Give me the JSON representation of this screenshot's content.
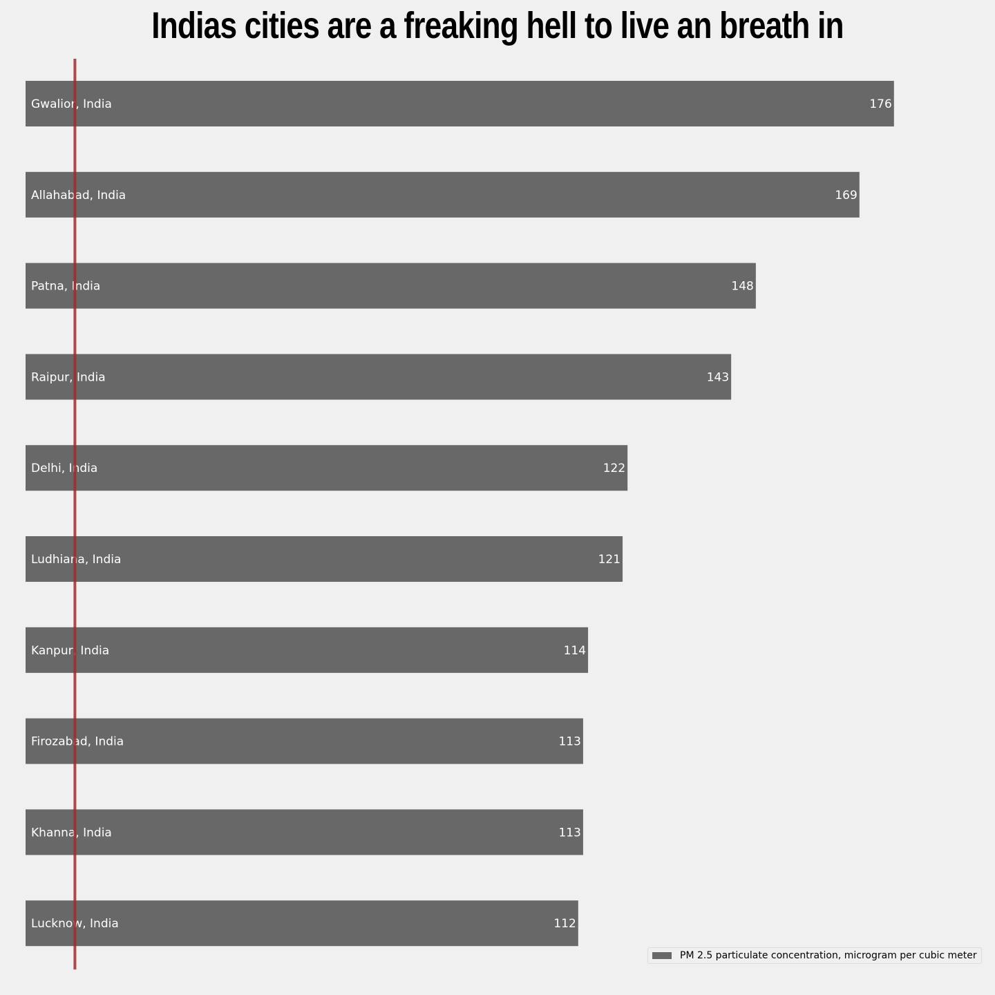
{
  "chart_data": {
    "type": "bar",
    "orientation": "horizontal",
    "title": "Indias cities are a freaking hell to live an breath in",
    "categories": [
      "Gwalior, India",
      "Allahabad, India",
      "Patna, India",
      "Raipur, India",
      "Delhi, India",
      "Ludhiana, India",
      "Kanpur, India",
      "Firozabad, India",
      "Khanna, India",
      "Lucknow, India"
    ],
    "series": [
      {
        "name": "PM 2.5 particulate concentration, microgram per cubic meter",
        "values": [
          176,
          169,
          148,
          143,
          122,
          121,
          114,
          113,
          113,
          112
        ]
      }
    ],
    "reference_line": {
      "x": 10,
      "color": "#a52a2a"
    },
    "xlim": [
      0,
      185
    ],
    "grid": false,
    "legend_position": "bottom-right",
    "bar_color": "#686868",
    "label_color": "#ffffff",
    "background_color": "#f0f0f0"
  }
}
